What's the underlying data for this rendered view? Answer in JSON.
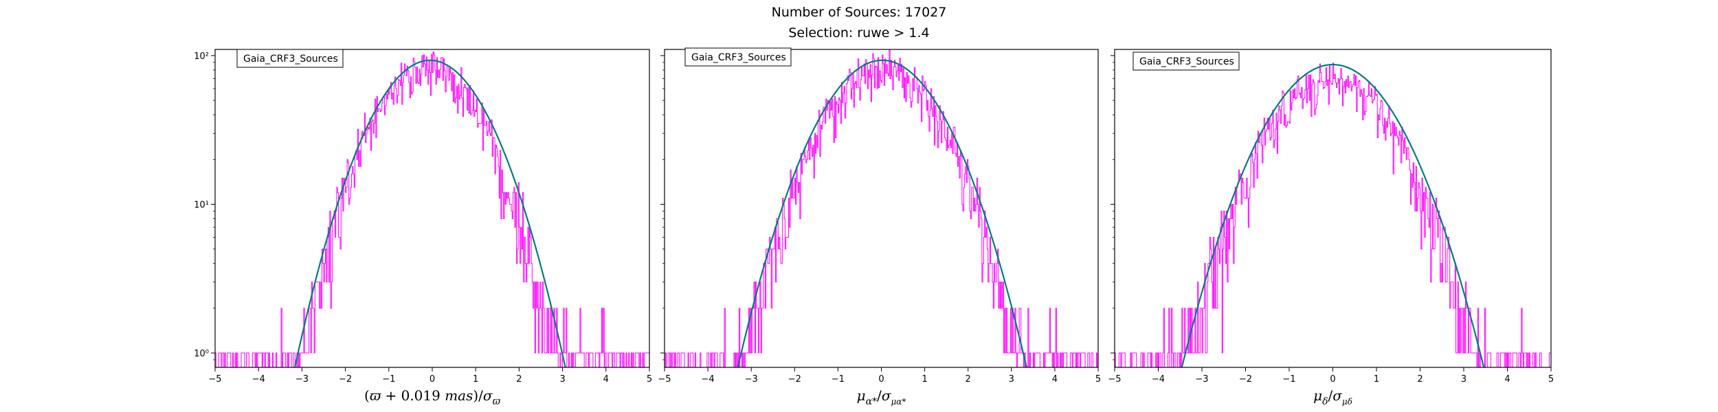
{
  "figure": {
    "title_line1": "Number of Sources: 17027",
    "title_line2": "Selection: ruwe > 1.4"
  },
  "colors": {
    "histogram": "#ff00ff",
    "fit_curve": "#007b80",
    "axes": "#000000"
  },
  "chart_data": [
    {
      "type": "histogram",
      "legend": "Gaia_CRF3_Sources",
      "legend_position": "top-left",
      "xlabel_plain": "(ϖ + 0.019 mas)/σϖ",
      "xlabel_parts": {
        "open": "(",
        "symbol": "ϖ",
        "const": " + 0.019 ",
        "unit": "mas",
        "close": ")/",
        "sigma": "σ",
        "sub": "ϖ"
      },
      "ylabel": "",
      "xlim": [
        -5,
        5
      ],
      "ylim": [
        0.8,
        110
      ],
      "yscale": "log",
      "xticks": [
        "−5",
        "−4",
        "−3",
        "−2",
        "−1",
        "0",
        "1",
        "2",
        "3",
        "4",
        "5"
      ],
      "yticks": [
        "10⁰",
        "10¹",
        "10²"
      ],
      "histogram_envelope": {
        "center": -0.1,
        "peak": 82,
        "sigma": 0.98,
        "noise_fraction": 0.22,
        "x_range": [
          -5,
          5
        ],
        "bin_width": 0.02
      },
      "fit_curve": {
        "center": -0.05,
        "peak": 93,
        "sigma": 1.01
      }
    },
    {
      "type": "histogram",
      "legend": "Gaia_CRF3_Sources",
      "legend_position": "top-left",
      "xlabel_plain": "μα*/σμα*",
      "xlabel_parts": {
        "mu": "μ",
        "mu_sub": "α*",
        "slash": "/",
        "sigma": "σ",
        "sigma_sub": "μα*"
      },
      "ylabel": "",
      "xlim": [
        -5,
        5
      ],
      "ylim": [
        0.8,
        110
      ],
      "yscale": "log",
      "xticks": [
        "−5",
        "−4",
        "−3",
        "−2",
        "−1",
        "0",
        "1",
        "2",
        "3",
        "4",
        "5"
      ],
      "yticks": [],
      "histogram_envelope": {
        "center": 0.02,
        "peak": 80,
        "sigma": 1.05,
        "noise_fraction": 0.22,
        "x_range": [
          -5,
          5
        ],
        "bin_width": 0.02
      },
      "fit_curve": {
        "center": 0.02,
        "peak": 93,
        "sigma": 1.08
      }
    },
    {
      "type": "histogram",
      "legend": "Gaia_CRF3_Sources",
      "legend_position": "top-left",
      "xlabel_plain": "μδ/σμδ",
      "xlabel_parts": {
        "mu": "μ",
        "mu_sub": "δ",
        "slash": "/",
        "sigma": "σ",
        "sigma_sub": "μδ"
      },
      "ylabel": "",
      "xlim": [
        -5,
        5
      ],
      "ylim": [
        0.8,
        110
      ],
      "yscale": "log",
      "xticks": [
        "−5",
        "−4",
        "−3",
        "−2",
        "−1",
        "0",
        "1",
        "2",
        "3",
        "4",
        "5"
      ],
      "yticks": [],
      "histogram_envelope": {
        "center": -0.05,
        "peak": 68,
        "sigma": 1.12,
        "noise_fraction": 0.22,
        "x_range": [
          -5,
          5
        ],
        "bin_width": 0.02
      },
      "fit_curve": {
        "center": 0.0,
        "peak": 87,
        "sigma": 1.13
      }
    }
  ]
}
